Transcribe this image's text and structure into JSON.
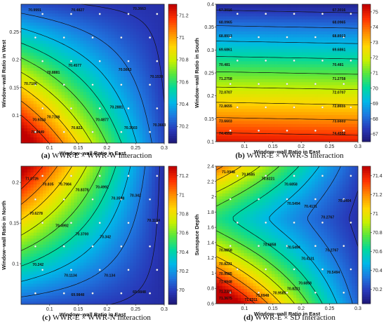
{
  "chart_data": [
    {
      "type": "heatmap",
      "caption_letter": "(a)",
      "caption_text": "WWR-E × WWR-W Interaction",
      "xlabel": "Window–wall Ratio in East",
      "ylabel": "Window–wall Ratio in West",
      "xlim": [
        0.05,
        0.3
      ],
      "ylim": [
        0.05,
        0.3
      ],
      "xticks": [
        "0.1",
        "0.15",
        "0.2",
        "0.25",
        "0.3"
      ],
      "yticks": [
        "0.1",
        "0.15",
        "0.2",
        "0.25"
      ],
      "colorbar_ticks": [
        "71.2",
        "71",
        "70.8",
        "70.6",
        "70.4",
        "70.2"
      ],
      "colorbar_range": [
        70.05,
        71.3
      ],
      "contour_labels": [
        "70.9991",
        "70.4827",
        "70.3663",
        "70.8881",
        "70.4577",
        "70.7106",
        "70.5663",
        "70.1538",
        "70.7106",
        "70.4877",
        "70.9324",
        "70.822",
        "70.2881",
        "71.0449",
        "70.3603",
        "70.3663"
      ],
      "colormap": [
        "#c00000",
        "#ff3300",
        "#ff8c00",
        "#ffd700",
        "#c8f000",
        "#55e640",
        "#00d8a0",
        "#00b8e8",
        "#1e78e0",
        "#2838b8",
        "#1c1470"
      ]
    },
    {
      "type": "heatmap",
      "caption_letter": "(b)",
      "caption_text": "WWR-E × WWR-S Interaction",
      "xlabel": "Window–wall Ratio in East",
      "ylabel": "Window–wall Ratio in South",
      "xlim": [
        0.05,
        0.3
      ],
      "ylim": [
        0.1,
        0.4
      ],
      "xticks": [
        "0.1",
        "0.15",
        "0.2",
        "0.25",
        "0.3"
      ],
      "yticks": [
        "0.1",
        "0.15",
        "0.2",
        "0.25",
        "0.3",
        "0.35",
        "0.4"
      ],
      "colorbar_ticks": [
        "75",
        "74",
        "73",
        "72",
        "71",
        "70",
        "69",
        "68",
        "67"
      ],
      "colorbar_range": [
        66.5,
        75.5
      ],
      "contour_labels": [
        "67.3016",
        "67.3016",
        "68.0965",
        "68.0965",
        "68.8913",
        "68.8913",
        "69.6861",
        "69.6861",
        "70.481",
        "70.481",
        "71.2758",
        "71.2758",
        "72.0707",
        "72.0707",
        "72.8655",
        "72.8655",
        "73.6603",
        "73.6603",
        "74.4552",
        "74.4552"
      ],
      "colormap": [
        "#c00000",
        "#ff3300",
        "#ff8c00",
        "#ffd700",
        "#c8f000",
        "#55e640",
        "#00d8a0",
        "#00b8e8",
        "#1e78e0",
        "#2838b8",
        "#1c1470"
      ]
    },
    {
      "type": "heatmap",
      "caption_letter": "(c)",
      "caption_text": "WWR-E × WWR-N Interaction",
      "xlabel": "Window–wall Ratio in East",
      "ylabel": "Window–wall Ratio in North",
      "xlim": [
        0.05,
        0.3
      ],
      "ylim": [
        0.05,
        0.22
      ],
      "xticks": [
        "0.1",
        "0.15",
        "0.2",
        "0.25",
        "0.3"
      ],
      "yticks": [
        "0.1",
        "0.15",
        "0.2"
      ],
      "colorbar_ticks": [
        "71.2",
        "71",
        "70.8",
        "70.6",
        "70.4",
        "70.2",
        "70"
      ],
      "colorbar_range": [
        69.85,
        71.3
      ],
      "contour_labels": [
        "71.0726",
        "70.835",
        "70.7984",
        "70.8378",
        "70.4992",
        "70.3598",
        "70.342",
        "70.6278",
        "70.4992",
        "70.3700",
        "70.342",
        "70.1134",
        "70.242",
        "70.1134",
        "70.134",
        "69.9848",
        "69.9848"
      ],
      "colormap": [
        "#c00000",
        "#ff3300",
        "#ff8c00",
        "#ffd700",
        "#c8f000",
        "#55e640",
        "#00d8a0",
        "#00b8e8",
        "#1e78e0",
        "#2838b8",
        "#1c1470"
      ]
    },
    {
      "type": "heatmap",
      "caption_letter": "(d)",
      "caption_text": "WWR-E × SD Interaction",
      "xlabel": "Window–wall Ratio in East",
      "ylabel": "Sunspace Depth",
      "xlim": [
        0.05,
        0.3
      ],
      "ylim": [
        0.6,
        2.4
      ],
      "xticks": [
        "0.1",
        "0.15",
        "0.2",
        "0.25",
        "0.3"
      ],
      "yticks": [
        "0.6",
        "0.8",
        "1",
        "1.2",
        "1.4",
        "1.6",
        "1.8",
        "2",
        "2.2",
        "2.4"
      ],
      "colorbar_ticks": [
        "71.4",
        "71.2",
        "71",
        "70.8",
        "70.6",
        "70.4",
        "70.2"
      ],
      "colorbar_range": [
        70.05,
        71.5
      ],
      "contour_labels": [
        "71.0948",
        "70.9585",
        "70.8221",
        "70.6858",
        "70.5494",
        "70.4131",
        "70.2767",
        "70.1404",
        "70.6858",
        "70.5494",
        "70.4131",
        "70.2767",
        "70.6858",
        "70.8221",
        "70.9585",
        "71.0948",
        "71.2311",
        "71.3675",
        "70.5494",
        "70.6858",
        "70.8221",
        "70.9585",
        "71.0948",
        "71.2311"
      ],
      "colormap": [
        "#c00000",
        "#ff3300",
        "#ff8c00",
        "#ffd700",
        "#c8f000",
        "#55e640",
        "#00d8a0",
        "#00b8e8",
        "#1e78e0",
        "#2838b8",
        "#1c1470"
      ]
    }
  ]
}
